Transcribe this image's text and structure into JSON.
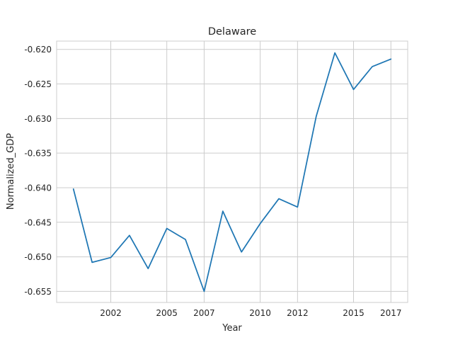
{
  "chart_data": {
    "type": "line",
    "title": "Delaware",
    "xlabel": "Year",
    "ylabel": "Normalized_GDP",
    "x": [
      2000,
      2001,
      2002,
      2003,
      2004,
      2005,
      2006,
      2007,
      2008,
      2009,
      2010,
      2011,
      2012,
      2013,
      2014,
      2015,
      2016,
      2017
    ],
    "series": [
      {
        "values": [
          -0.6402,
          -0.6508,
          -0.6501,
          -0.6469,
          -0.6517,
          -0.6459,
          -0.6475,
          -0.655,
          -0.6434,
          -0.6493,
          -0.6452,
          -0.6416,
          -0.6428,
          -0.6297,
          -0.6205,
          -0.6258,
          -0.6225,
          -0.6214
        ],
        "color": "#1f77b4"
      }
    ],
    "xlim": [
      1999.1,
      2017.9
    ],
    "ylim": [
      -0.6566,
      -0.6188
    ],
    "xticks": [
      2002,
      2005,
      2007,
      2010,
      2012,
      2015,
      2017
    ],
    "xtick_labels": [
      "2002",
      "2005",
      "2007",
      "2010",
      "2012",
      "2015",
      "2017"
    ],
    "yticks": [
      -0.655,
      -0.65,
      -0.645,
      -0.64,
      -0.635,
      -0.63,
      -0.625,
      -0.62
    ],
    "ytick_labels": [
      "-0.655",
      "-0.650",
      "-0.645",
      "-0.640",
      "-0.635",
      "-0.630",
      "-0.625",
      "-0.620"
    ],
    "grid": true,
    "style": "whitegrid"
  }
}
